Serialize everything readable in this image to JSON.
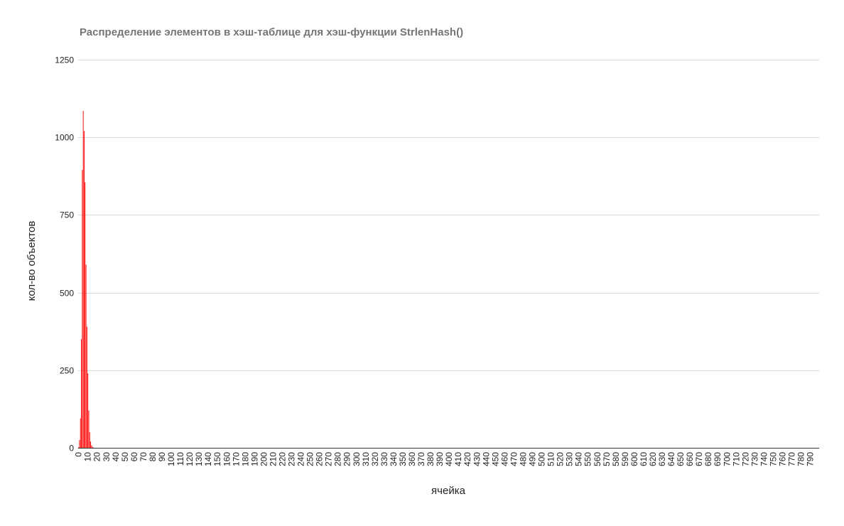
{
  "chart_data": {
    "type": "bar",
    "title": "Распределение элементов в хэш-таблице для хэш-функции StrlenHash()",
    "xlabel": "ячейка",
    "ylabel": "кол-во объектов",
    "ylim": [
      0,
      1250
    ],
    "yticks": [
      0,
      250,
      500,
      750,
      1000,
      1250
    ],
    "xlim": [
      0,
      799
    ],
    "x_tick_step": 10,
    "x_tick_max": 790,
    "grid": true,
    "legend": "none",
    "colors": {
      "bars": "#ff0000",
      "title": "#757575",
      "grid": "#d9d9d9",
      "axis": "#333333",
      "text": "#222222"
    },
    "series": [
      {
        "x": [
          0,
          1,
          2,
          3,
          4,
          5,
          6,
          7,
          8,
          9,
          10,
          11,
          12,
          13,
          14,
          15,
          16,
          17,
          18,
          19,
          20
        ],
        "values": [
          2,
          25,
          95,
          350,
          895,
          1085,
          1020,
          855,
          590,
          390,
          240,
          120,
          50,
          20,
          8,
          3,
          1,
          0,
          0,
          0,
          0
        ]
      }
    ]
  }
}
